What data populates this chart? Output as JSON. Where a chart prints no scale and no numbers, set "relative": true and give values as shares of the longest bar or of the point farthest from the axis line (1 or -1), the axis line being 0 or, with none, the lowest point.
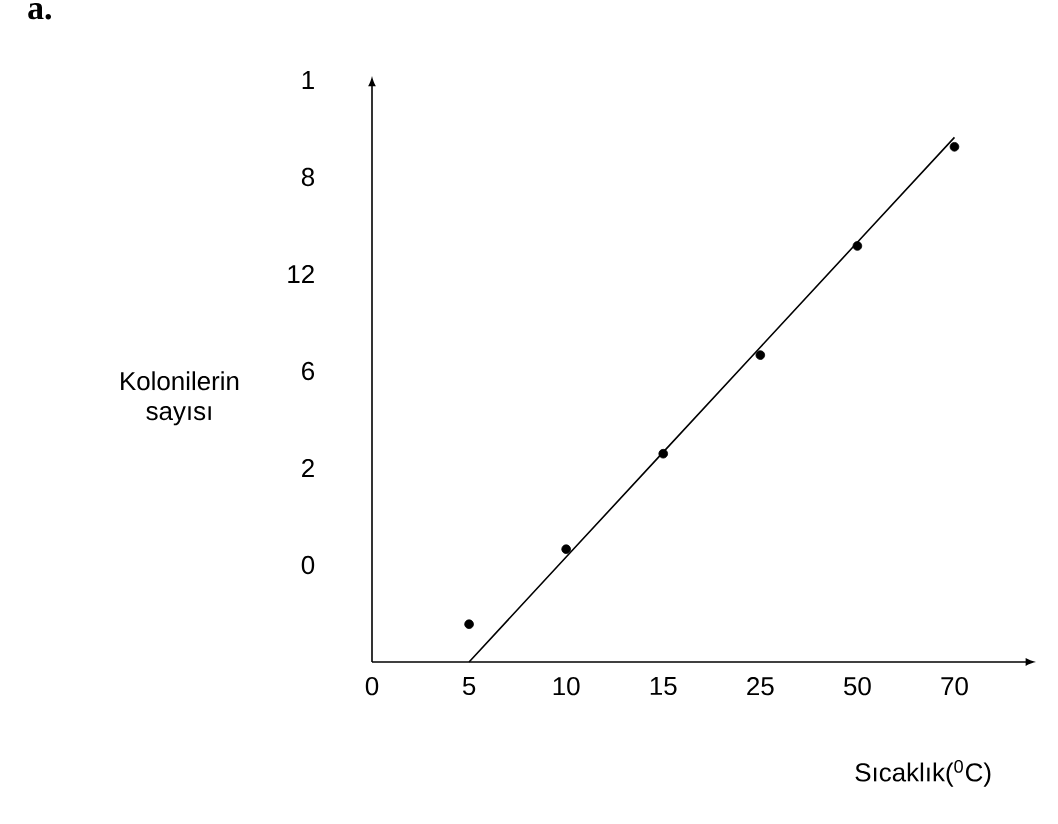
{
  "chart_data": {
    "type": "scatter",
    "title": "**a.**",
    "xlabel": "Sıcaklık($^{0}$C)",
    "ylabel": "Kolonilerin sayısı",
    "relative": true,
    "annotations": [
      "1",
      "8",
      "12",
      "6",
      "2",
      "0"
    ],
    "categories": [
      "0",
      "5",
      "10",
      "15",
      "25",
      "50",
      "70"
    ],
    "series": [
      {
        "color": "#000000",
        "marker": "circle",
        "values": [
          null,
          0.072,
          0.215,
          0.397,
          0.585,
          0.793,
          0.982
        ]
      },
      {
        "type": "line",
        "color": "#000000",
        "marker": "none",
        "values": [
          null,
          0,
          0.2,
          0.4,
          0.6,
          0.8,
          1.0
        ]
      }
    ]
  }
}
